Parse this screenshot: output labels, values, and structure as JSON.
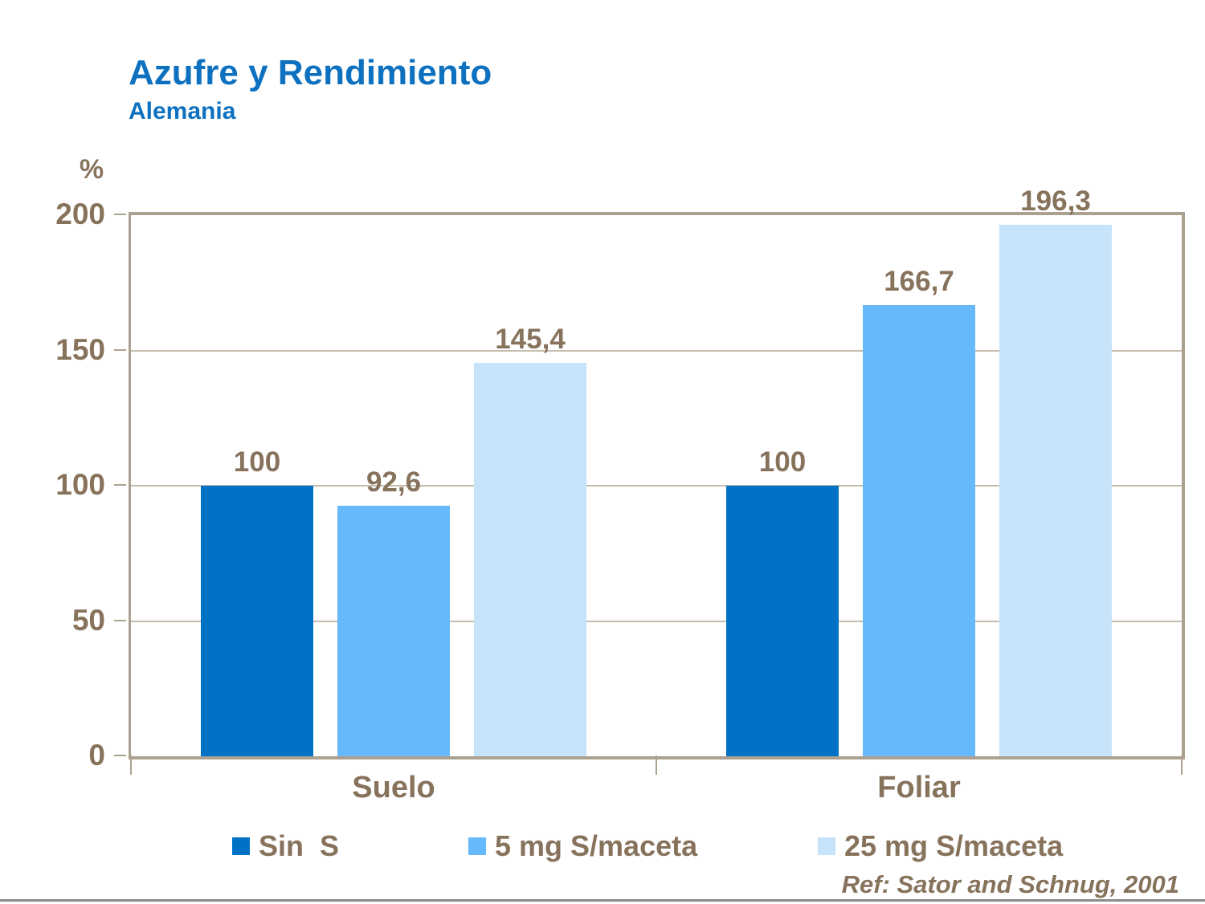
{
  "header": {
    "title": "Azufre y Rendimiento",
    "subtitle": "Alemania"
  },
  "footer": {
    "reference": "Ref: Sator and Schnug, 2001"
  },
  "colors": {
    "title_blue": "#0D71C0",
    "axis_text": "#87735C",
    "frame_line": "#ACA091",
    "gridline": "#C6BCAE",
    "bottom_rule": "#8C8C8C",
    "series": [
      "#0072C6",
      "#66B9FB",
      "#C7E3FA"
    ]
  },
  "chart_data": {
    "type": "bar",
    "title": "Azufre y Rendimiento — Alemania",
    "ylabel": "%",
    "xlabel": "",
    "ylim": [
      0,
      200
    ],
    "yticks": [
      0,
      50,
      100,
      150,
      200
    ],
    "grid": true,
    "legend_position": "bottom",
    "categories": [
      "Suelo",
      "Foliar"
    ],
    "series": [
      {
        "name": "Sin  S",
        "color": "#0072C6",
        "values": [
          100,
          100
        ],
        "labels": [
          "100",
          "100"
        ]
      },
      {
        "name": "5 mg S/maceta",
        "color": "#66B9FB",
        "values": [
          92.6,
          166.7
        ],
        "labels": [
          "92,6",
          "166,7"
        ]
      },
      {
        "name": "25 mg S/maceta",
        "color": "#C7E3FA",
        "values": [
          145.4,
          196.3
        ],
        "labels": [
          "145,4",
          "196,3"
        ]
      }
    ]
  }
}
